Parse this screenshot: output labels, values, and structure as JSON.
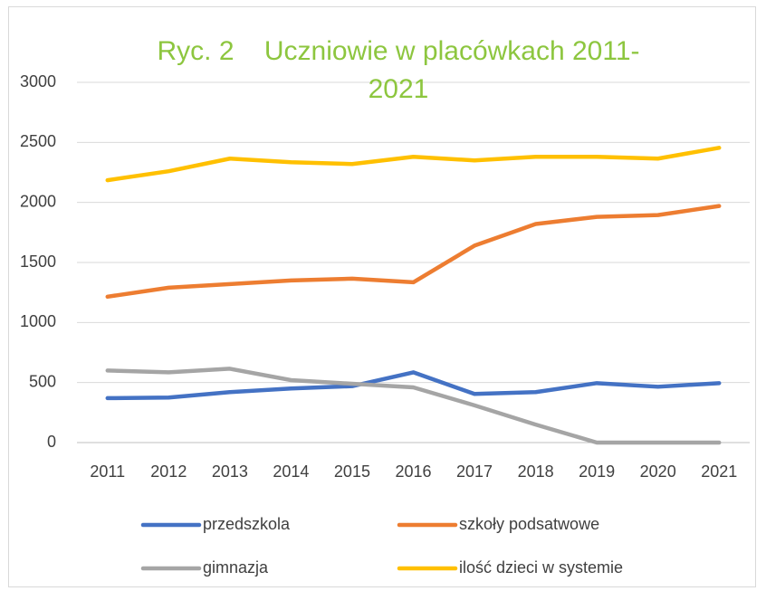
{
  "chart_data": {
    "type": "line",
    "title": "Ryc. 2    Uczniowie w placówkach 2011-2021",
    "categories": [
      "2011",
      "2012",
      "2013",
      "2014",
      "2015",
      "2016",
      "2017",
      "2018",
      "2019",
      "2020",
      "2021"
    ],
    "series": [
      {
        "name": "przedszkola",
        "color": "#4472c4",
        "values": [
          370,
          375,
          420,
          450,
          470,
          585,
          405,
          420,
          495,
          465,
          495
        ]
      },
      {
        "name": "szkoły podsatwowe",
        "color": "#ed7d31",
        "values": [
          1215,
          1290,
          1320,
          1350,
          1365,
          1335,
          1640,
          1820,
          1880,
          1895,
          1970
        ]
      },
      {
        "name": "gimnazja",
        "color": "#a5a5a5",
        "values": [
          600,
          585,
          615,
          520,
          490,
          460,
          310,
          150,
          0,
          0,
          0
        ]
      },
      {
        "name": "ilość dzieci w systemie",
        "color": "#ffc000",
        "values": [
          2185,
          2260,
          2365,
          2335,
          2320,
          2380,
          2350,
          2380,
          2380,
          2365,
          2455
        ]
      }
    ],
    "ylim": [
      0,
      3000
    ],
    "yticks": [
      0,
      500,
      1000,
      1500,
      2000,
      2500,
      3000
    ],
    "grid": true,
    "legend": "bottom"
  }
}
